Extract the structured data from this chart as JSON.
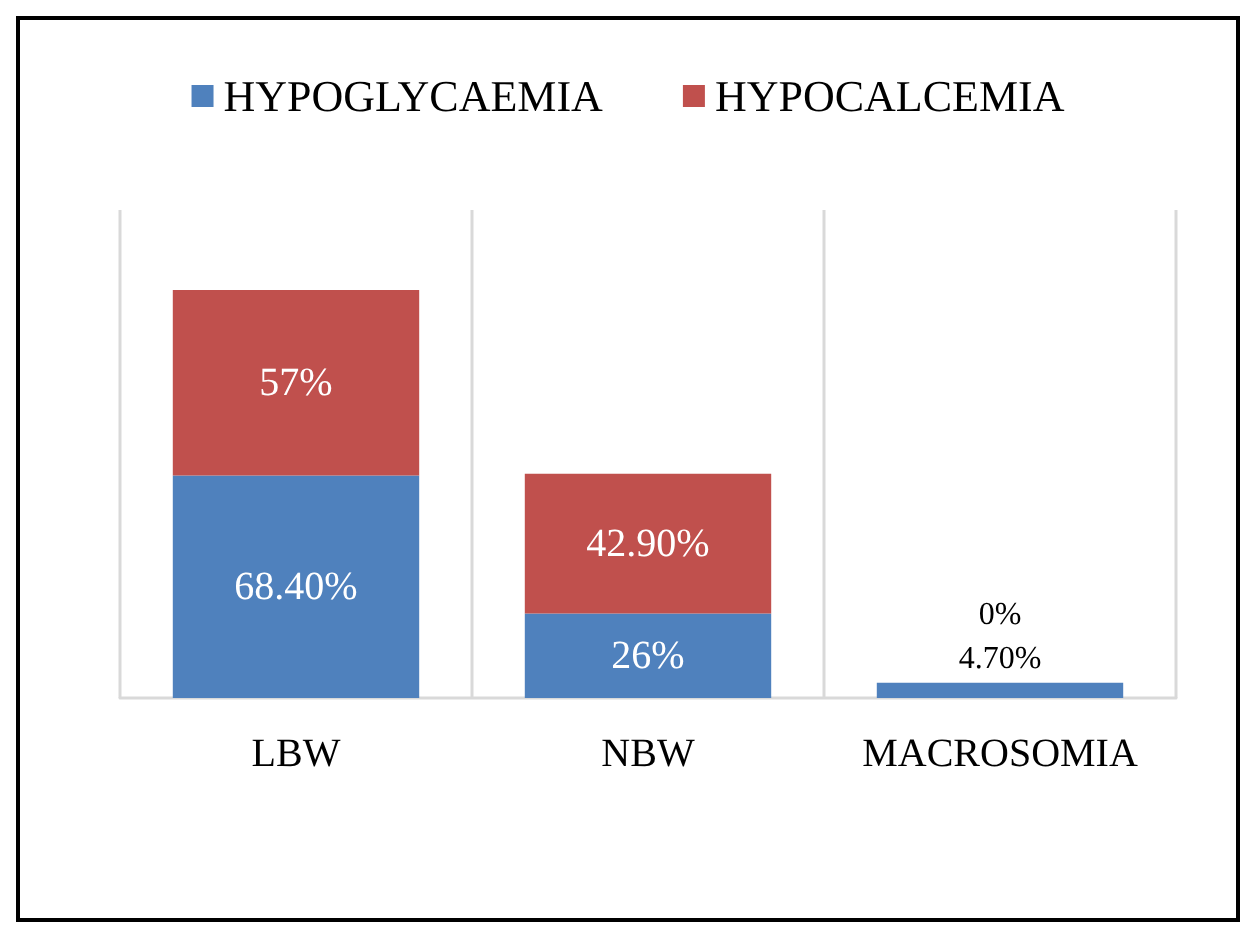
{
  "chart_data": {
    "type": "bar",
    "stacked": true,
    "categories": [
      "LBW",
      "NBW",
      "MACROSOMIA"
    ],
    "series": [
      {
        "name": "HYPOGLYCAEMIA",
        "color": "#4f81bd",
        "values": [
          68.4,
          26,
          4.7
        ],
        "value_labels": [
          "68.40%",
          "26%",
          "4.70%"
        ]
      },
      {
        "name": "HYPOCALCEMIA",
        "color": "#c0504d",
        "values": [
          57,
          42.9,
          0
        ],
        "value_labels": [
          "57%",
          "42.90%",
          "0%"
        ]
      }
    ],
    "legend": "top",
    "grid": "x"
  }
}
